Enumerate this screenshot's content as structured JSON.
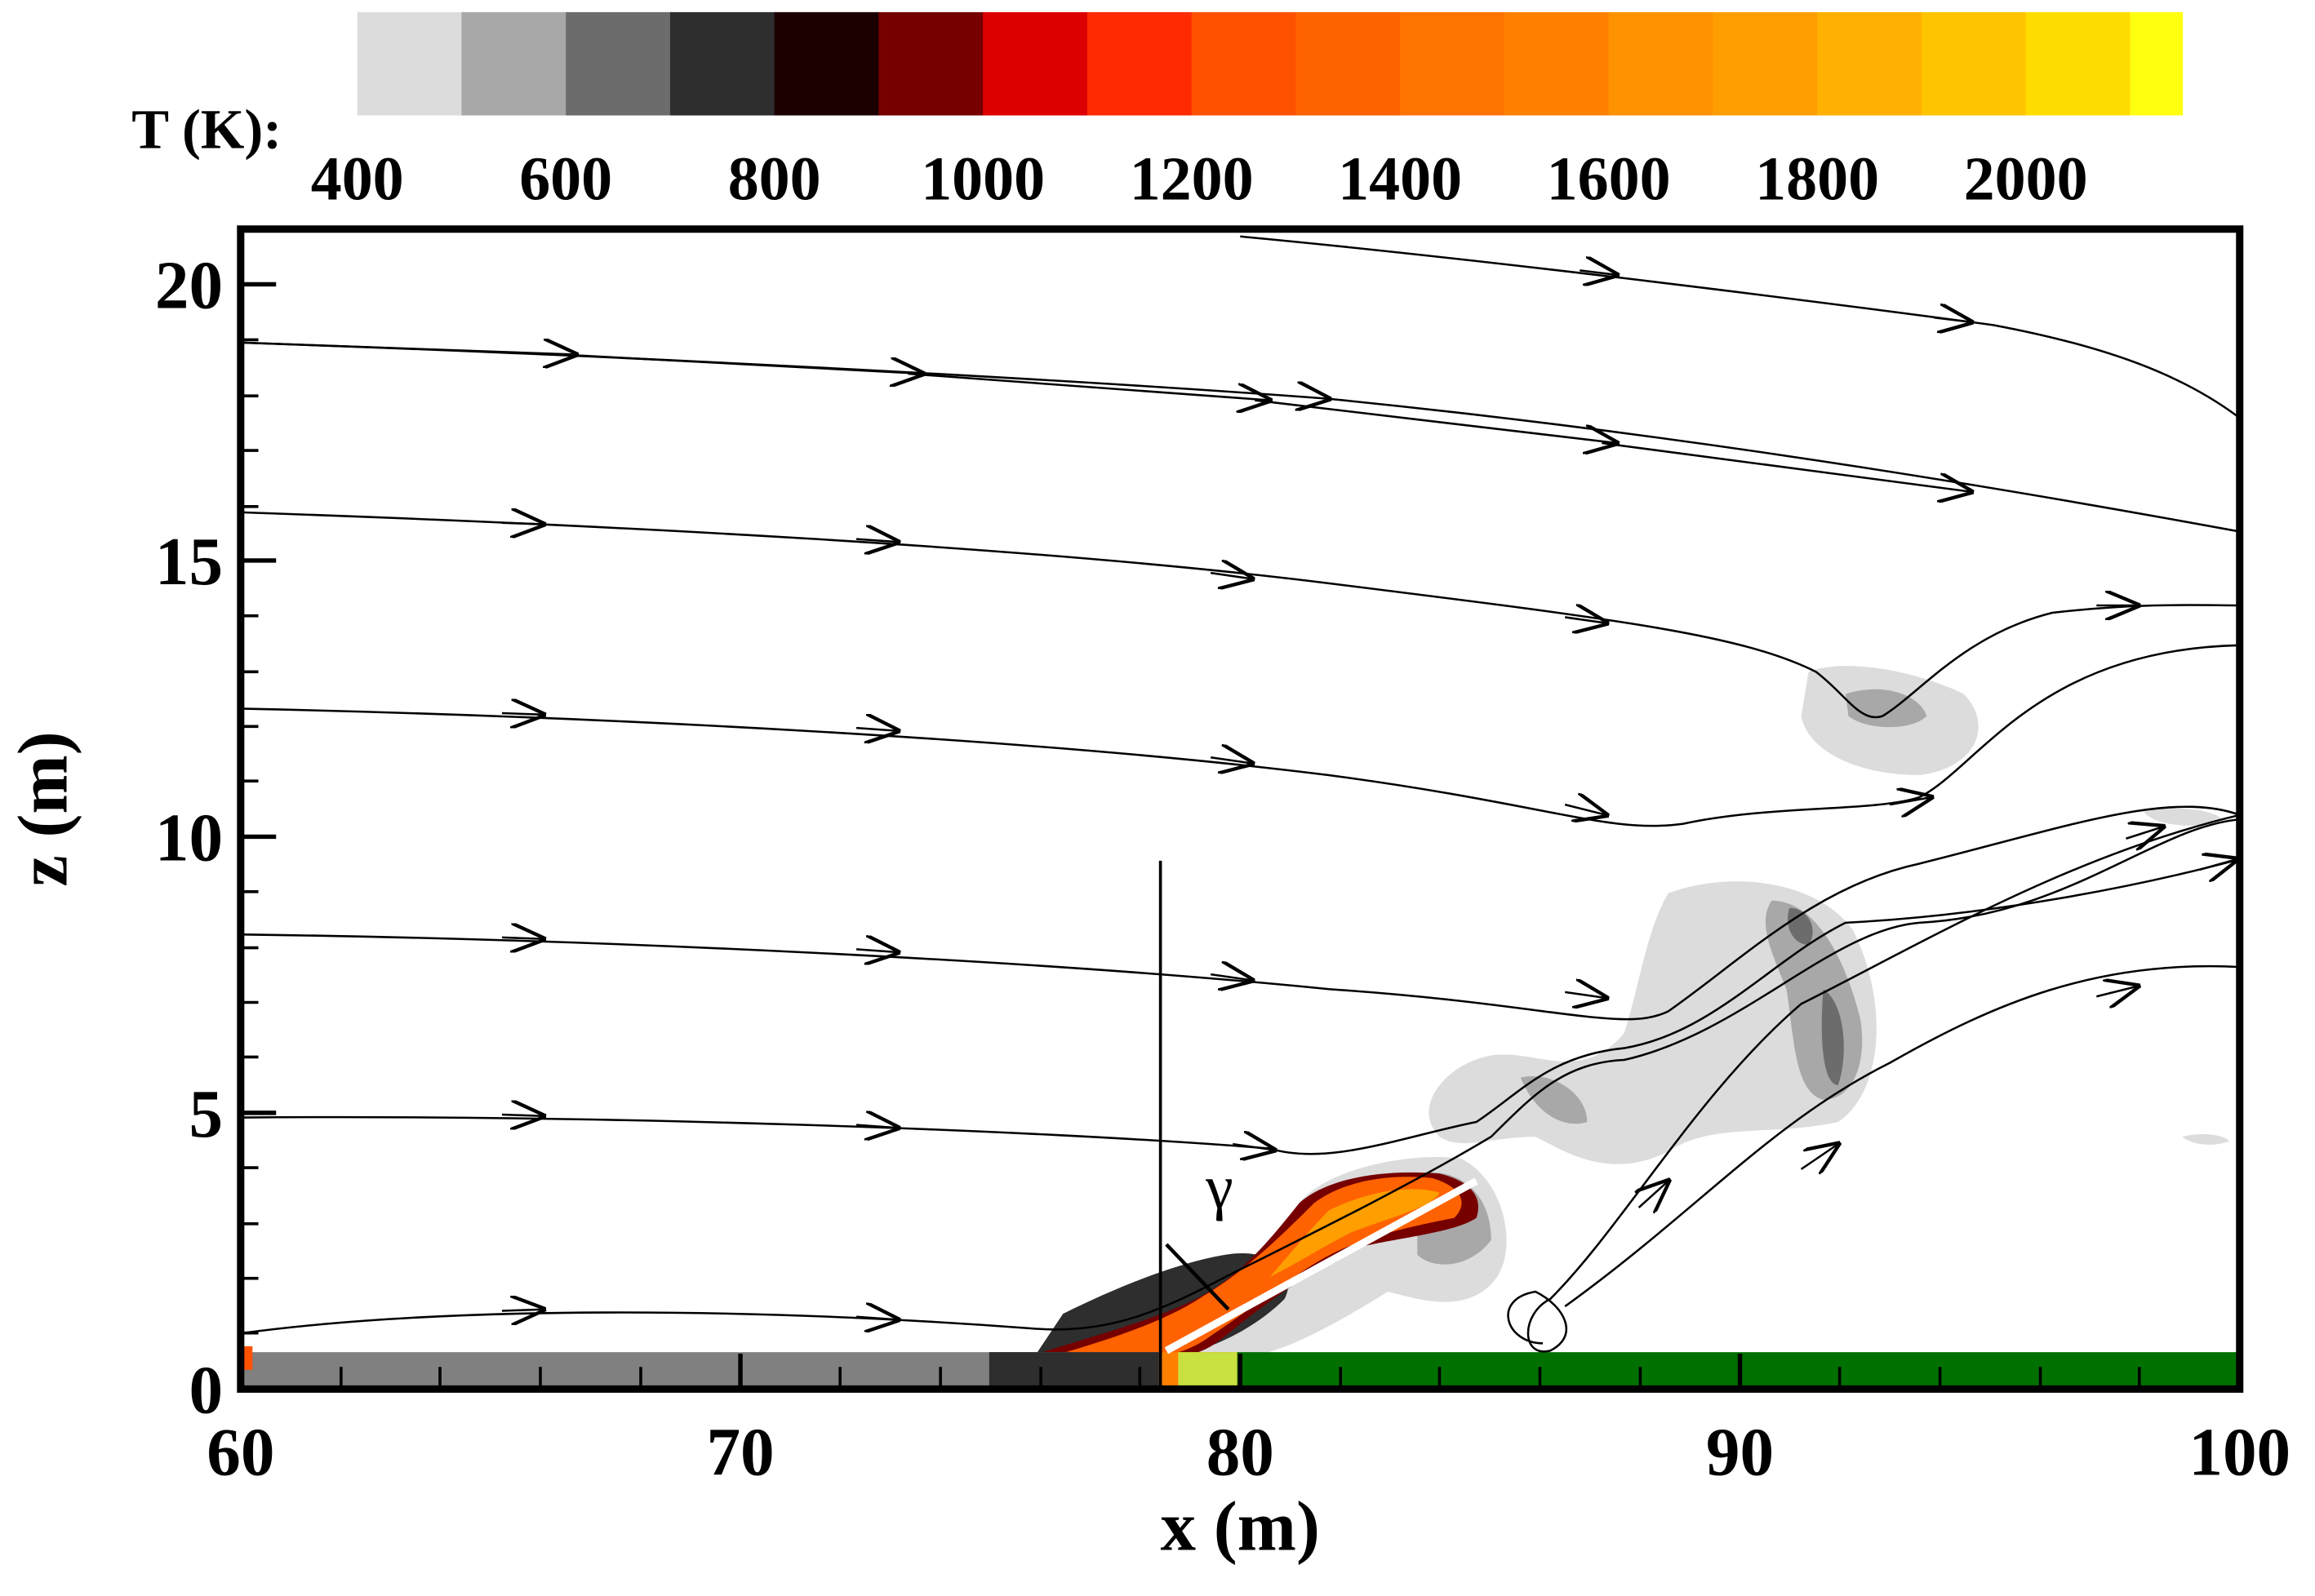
{
  "chart_data": {
    "type": "contour",
    "colorbar": {
      "label": "T (K):",
      "levels": [
        400,
        500,
        600,
        700,
        800,
        900,
        1000,
        1100,
        1200,
        1300,
        1400,
        1500,
        1600,
        1700,
        1800,
        1900,
        2000,
        2100,
        2150
      ],
      "colors": [
        "#dcdcdc",
        "#a8a8a8",
        "#6c6c6c",
        "#2e2e2e",
        "#1c0000",
        "#760000",
        "#dc0000",
        "#ff2a00",
        "#ff5200",
        "#ff6200",
        "#ff7400",
        "#ff8000",
        "#ff9200",
        "#ff9e00",
        "#ffb000",
        "#ffc400",
        "#ffdc00",
        "#ffff10"
      ],
      "ticks": [
        400,
        600,
        800,
        1000,
        1200,
        1400,
        1600,
        1800,
        2000
      ]
    },
    "xlabel": "x (m)",
    "ylabel": "z (m)",
    "xlim": [
      60,
      100
    ],
    "xticks": [
      60,
      70,
      80,
      90,
      100
    ],
    "ylim": [
      0,
      21
    ],
    "yticks": [
      0,
      5,
      10,
      15,
      20
    ],
    "annotation": "γ"
  }
}
